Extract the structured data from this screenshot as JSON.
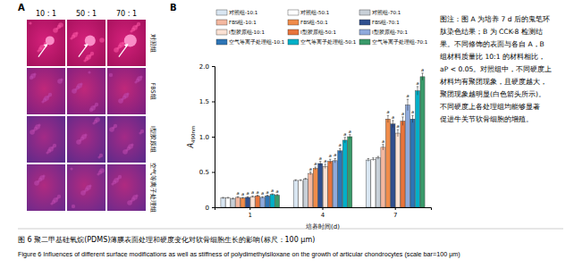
{
  "chart_data": {
    "type": "bar",
    "panel_label": "B",
    "categories": [
      "1",
      "4",
      "7"
    ],
    "x_label": "培养时间(d)",
    "y_label": "A490nm",
    "ylim": [
      0,
      2
    ],
    "yticks": [
      0,
      0.5,
      {
        "value": 1,
        "label": "1.0"
      },
      1.5,
      {
        "value": 2,
        "label": "2.0"
      }
    ],
    "grid": false,
    "legend": "top",
    "series": [
      {
        "name": "对照组-10:1",
        "color": "#d9e6f2",
        "values": [
          0.13,
          0.38,
          0.67
        ],
        "errors": [
          0.01,
          0.01,
          0.02
        ]
      },
      {
        "name": "对照组-50:1",
        "color": "#ffffff",
        "values": [
          0.13,
          0.38,
          0.68
        ],
        "errors": [
          0.01,
          0.01,
          0.02
        ]
      },
      {
        "name": "对照组-70:1",
        "color": "#c8d0d8",
        "values": [
          0.12,
          0.4,
          0.7
        ],
        "errors": [
          0.01,
          0.01,
          0.02
        ]
      },
      {
        "name": "FBS组-10:1",
        "color": "#f4b8a0",
        "values": [
          0.14,
          0.48,
          0.85
        ],
        "errors": [
          0.01,
          0.02,
          0.04
        ],
        "significance": [
          "a",
          "a",
          "a"
        ]
      },
      {
        "name": "FBS组-50:1",
        "color": "#f08c4a",
        "values": [
          0.13,
          0.55,
          1.25
        ],
        "errors": [
          0.01,
          0.02,
          0.05
        ],
        "significance": [
          "a",
          "a",
          "a"
        ]
      },
      {
        "name": "FBS组-70:1",
        "color": "#2f4f8f",
        "values": [
          0.14,
          0.62,
          1.18
        ],
        "errors": [
          0.01,
          0.03,
          0.05
        ],
        "significance": [
          "a",
          "a",
          "a"
        ]
      },
      {
        "name": "Ⅰ型胶原组-10:1",
        "color": "#fbe1d3",
        "values": [
          0.15,
          0.58,
          1.05
        ],
        "errors": [
          0.01,
          0.03,
          0.05
        ],
        "significance": [
          "a",
          "a",
          "a"
        ]
      },
      {
        "name": "Ⅰ型胶原组-50:1",
        "color": "#e8743b",
        "values": [
          0.16,
          0.65,
          1.22
        ],
        "errors": [
          0.01,
          0.03,
          0.06
        ],
        "significance": [
          "a",
          "a",
          "a"
        ]
      },
      {
        "name": "Ⅰ型胶原组-70:1",
        "color": "#8faadc",
        "values": [
          0.14,
          0.66,
          1.45
        ],
        "errors": [
          0.01,
          0.03,
          0.08
        ],
        "significance": [
          "a",
          "a",
          "a"
        ]
      },
      {
        "name": "空气等离子处理组-10:1",
        "color": "#2e75b6",
        "values": [
          0.16,
          0.8,
          1.25
        ],
        "errors": [
          0.01,
          0.03,
          0.05
        ],
        "significance": [
          "a",
          "a",
          "a"
        ]
      },
      {
        "name": "空气等离子处理组-50:1",
        "color": "#00b0c8",
        "values": [
          0.18,
          0.95,
          1.65
        ],
        "errors": [
          0.01,
          0.04,
          0.06
        ],
        "significance": [
          "a",
          "a",
          "a"
        ]
      },
      {
        "name": "空气等离子处理组-70:1",
        "color": "#3a9a6a",
        "values": [
          0.17,
          1.0,
          1.85
        ],
        "errors": [
          0.01,
          0.03,
          0.05
        ],
        "significance": [
          "a",
          "a",
          "a"
        ]
      }
    ]
  },
  "panel_a": {
    "label": "A",
    "columns": [
      "10 : 1",
      "50 : 1",
      "70 : 1"
    ],
    "rows": [
      "对照组",
      "FBS组",
      "Ⅰ型胶原组",
      "空气等离子处理组"
    ]
  },
  "caption_note": [
    "图注：图 A 为培养 7 d 后的鬼笔环",
    "肽染色结果；B 为 CCK-8 检测结",
    "果。不同修饰的表面与各自 A，B",
    "组材料质量比 10:1 的材料相比，",
    "aP < 0.05。对照组中，不同硬度上",
    "材料均有聚团现象，且硬度越大，",
    "聚团现象越明显(白色箭头所示)。",
    "不同硬度上各处理组均能够显著",
    "促进牛关节软骨细胞的增殖。"
  ],
  "figure_caption": {
    "zh": "图 6  聚二甲基硅氧烷(PDMS)薄膜表面处理和硬度变化对软骨细胞生长的影响(标尺：100 μm)",
    "en": "Figure 6  Influences of different surface modifications as well as stiffness of polydimethylsiloxane on the growth of articular chondrocytes (scale bar=100 μm)"
  }
}
